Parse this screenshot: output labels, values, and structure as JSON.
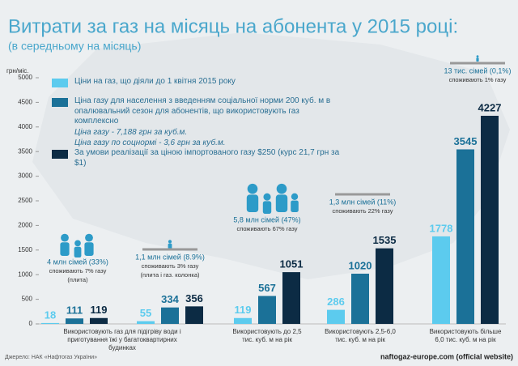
{
  "chart_data": {
    "type": "bar",
    "title": "Витрати за газ на місяць на абонента у 2015 році:",
    "subtitle": "(в середньому на місяць)",
    "y_label": "грн/міс.",
    "categories": [
      "Використовують газ для підігріву води і приготування їжі у багатоквартирних будинках",
      null,
      "Використовують до 2,5 тис. куб. м на рік",
      "Використовують 2,5-6,0 тис. куб. м на рік",
      "Використовують більше 6,0 тис. куб. м на рік"
    ],
    "series": [
      {
        "name": "Ціни на газ, що діяли  до 1 квітня 2015 року",
        "color": "#5ccbee",
        "values": [
          18,
          55,
          119,
          286,
          1778
        ]
      },
      {
        "name": "Ціна газу для населення з введенням соціальної норми 200 куб. м в опалювальний сезон для абонентів, що використовують газ комплексно",
        "color": "#1b7198",
        "values": [
          111,
          334,
          567,
          1020,
          3545
        ]
      },
      {
        "name": "За умови реалізації за ціною імпортованого газу $250  (курс 21,7 грн  за  $1)",
        "color": "#0c2b44",
        "values": [
          119,
          356,
          1051,
          1535,
          4227
        ]
      }
    ],
    "legend_notes": [
      "Ціна газу - 7,188 грн за куб.м.",
      "Ціна газу  по соцнормі - 3,6 грн за куб.м."
    ],
    "annotations": [
      [
        "4 млн сімей (33%)",
        "споживають 7% газу",
        "(плита)"
      ],
      [
        "1,1 млн сімей (8.9%)",
        "споживають 3% газу",
        "(плита і газ. колонка)"
      ],
      [
        "5,8 млн сімей (47%)",
        "споживають 67% газу"
      ],
      [
        "1,3 млн сімей (11%)",
        "споживають 22% газу"
      ],
      [
        "13 тис. сімей (0,1%)",
        "споживають 1% газу"
      ]
    ],
    "ylim": [
      0,
      5000
    ],
    "yticks": [
      0,
      500,
      1000,
      1500,
      2000,
      2500,
      3000,
      3500,
      4000,
      4500,
      5000
    ],
    "grid": false,
    "source": "Джерело: НАК «Нафтогаз України»",
    "watermark": "naftogaz-europe.com (official website)"
  }
}
